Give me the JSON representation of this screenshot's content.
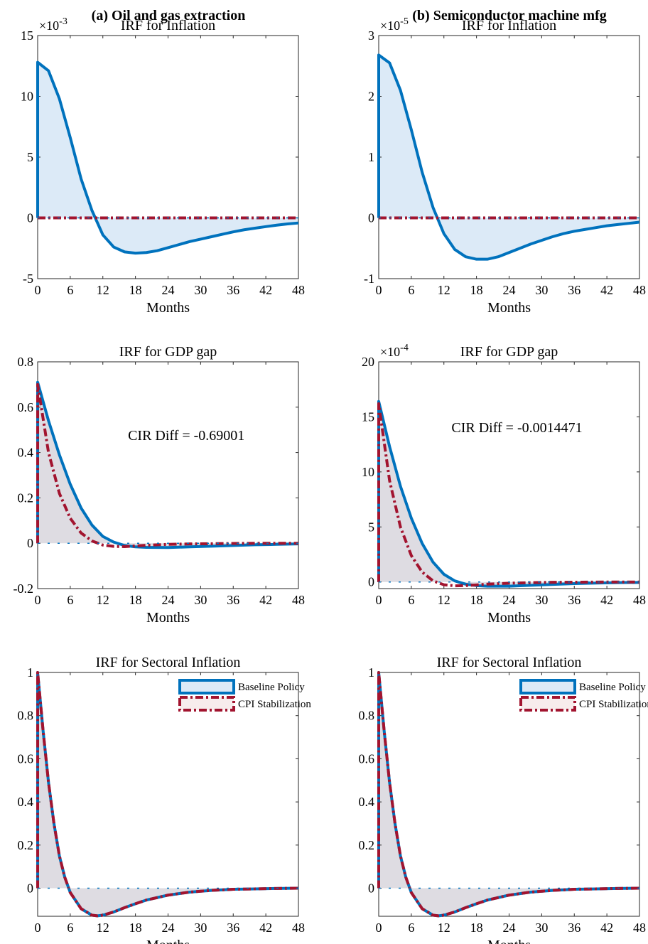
{
  "column_titles": [
    "(a) Oil and gas extraction",
    "(b) Semiconductor machine mfg"
  ],
  "colors": {
    "baseline": "#0072BD",
    "baseline_fill": "#DCEAF7",
    "cpi": "#A2142F",
    "gray_fill": "#DEDCE2"
  },
  "legend": {
    "baseline": "Baseline Policy",
    "cpi": "CPI Stabilization"
  },
  "chart_data": [
    {
      "type": "line",
      "title": "IRF for Inflation",
      "xlabel": "Months",
      "ylabel": "",
      "exponent_label": "×10",
      "exponent": "-3",
      "xlim": [
        0,
        48
      ],
      "ylim": [
        -5,
        15
      ],
      "xticks": [
        0,
        6,
        12,
        18,
        24,
        30,
        36,
        42,
        48
      ],
      "yticks": [
        -5,
        0,
        5,
        10,
        15
      ],
      "ytick_labels": [
        "-5",
        "0",
        "5",
        "10",
        "15"
      ],
      "area_fill": "baseline",
      "legend": false,
      "annotation": "",
      "series": [
        {
          "name": "Baseline Policy",
          "style": "solid",
          "x": [
            0,
            0,
            2,
            4,
            6,
            8,
            10,
            12,
            14,
            16,
            18,
            20,
            22,
            24,
            26,
            28,
            30,
            32,
            34,
            36,
            38,
            40,
            42,
            44,
            46,
            48
          ],
          "y": [
            0,
            12.8,
            12.1,
            9.8,
            6.6,
            3.2,
            0.6,
            -1.4,
            -2.4,
            -2.8,
            -2.9,
            -2.85,
            -2.7,
            -2.45,
            -2.2,
            -1.95,
            -1.75,
            -1.55,
            -1.35,
            -1.15,
            -0.98,
            -0.85,
            -0.72,
            -0.6,
            -0.5,
            -0.42
          ]
        },
        {
          "name": "CPI Stabilization",
          "style": "dashdot",
          "x": [
            0,
            48
          ],
          "y": [
            0,
            0
          ]
        }
      ]
    },
    {
      "type": "line",
      "title": "IRF for Inflation",
      "xlabel": "Months",
      "ylabel": "",
      "exponent_label": "×10",
      "exponent": "-5",
      "xlim": [
        0,
        48
      ],
      "ylim": [
        -1,
        3
      ],
      "xticks": [
        0,
        6,
        12,
        18,
        24,
        30,
        36,
        42,
        48
      ],
      "yticks": [
        -1,
        0,
        1,
        2,
        3
      ],
      "ytick_labels": [
        "-1",
        "0",
        "1",
        "2",
        "3"
      ],
      "area_fill": "baseline",
      "legend": false,
      "annotation": "",
      "series": [
        {
          "name": "Baseline Policy",
          "style": "solid",
          "x": [
            0,
            0,
            2,
            4,
            6,
            8,
            10,
            12,
            14,
            16,
            18,
            20,
            22,
            24,
            26,
            28,
            30,
            32,
            34,
            36,
            38,
            40,
            42,
            44,
            46,
            48
          ],
          "y": [
            0,
            2.68,
            2.55,
            2.1,
            1.45,
            0.75,
            0.17,
            -0.26,
            -0.52,
            -0.64,
            -0.68,
            -0.68,
            -0.64,
            -0.57,
            -0.5,
            -0.43,
            -0.37,
            -0.31,
            -0.26,
            -0.22,
            -0.19,
            -0.16,
            -0.13,
            -0.11,
            -0.09,
            -0.07
          ]
        },
        {
          "name": "CPI Stabilization",
          "style": "dashdot",
          "x": [
            0,
            48
          ],
          "y": [
            0,
            0
          ]
        }
      ]
    },
    {
      "type": "line",
      "title": "IRF for GDP gap",
      "xlabel": "Months",
      "ylabel": "",
      "exponent_label": "",
      "exponent": "",
      "xlim": [
        0,
        48
      ],
      "ylim": [
        -0.2,
        0.8
      ],
      "xticks": [
        0,
        6,
        12,
        18,
        24,
        30,
        36,
        42,
        48
      ],
      "yticks": [
        -0.2,
        0,
        0.2,
        0.4,
        0.6,
        0.8
      ],
      "ytick_labels": [
        "-0.2",
        "0",
        "0.2",
        "0.4",
        "0.6",
        "0.8"
      ],
      "area_fill": "gray",
      "legend": false,
      "annotation": "CIR Diff = -0.69001",
      "series": [
        {
          "name": "Baseline Policy",
          "style": "solid",
          "x": [
            0,
            0,
            2,
            4,
            6,
            8,
            10,
            12,
            14,
            16,
            18,
            20,
            24,
            28,
            32,
            36,
            40,
            44,
            48
          ],
          "y": [
            0,
            0.71,
            0.54,
            0.39,
            0.26,
            0.155,
            0.08,
            0.03,
            0.005,
            -0.01,
            -0.016,
            -0.018,
            -0.019,
            -0.016,
            -0.013,
            -0.01,
            -0.007,
            -0.005,
            -0.003
          ]
        },
        {
          "name": "CPI Stabilization",
          "style": "dashdot",
          "x": [
            0,
            0,
            2,
            4,
            6,
            8,
            10,
            12,
            14,
            16,
            18,
            20,
            24,
            28,
            32,
            36,
            40,
            44,
            48
          ],
          "y": [
            0,
            0.7,
            0.4,
            0.22,
            0.11,
            0.045,
            0.01,
            -0.008,
            -0.014,
            -0.015,
            -0.012,
            -0.009,
            -0.005,
            -0.003,
            -0.002,
            -0.001,
            0,
            0,
            0
          ]
        }
      ]
    },
    {
      "type": "line",
      "title": "IRF for GDP gap",
      "xlabel": "Months",
      "ylabel": "",
      "exponent_label": "×10",
      "exponent": "-4",
      "xlim": [
        0,
        48
      ],
      "ylim": [
        -0.6,
        20
      ],
      "xticks": [
        0,
        6,
        12,
        18,
        24,
        30,
        36,
        42,
        48
      ],
      "yticks": [
        0,
        5,
        10,
        15,
        20
      ],
      "ytick_labels": [
        "0",
        "5",
        "10",
        "15",
        "20"
      ],
      "area_fill": "gray",
      "legend": false,
      "annotation": "CIR Diff = -0.0014471",
      "series": [
        {
          "name": "Baseline Policy",
          "style": "solid",
          "x": [
            0,
            0,
            2,
            4,
            6,
            8,
            10,
            12,
            14,
            16,
            18,
            20,
            24,
            28,
            32,
            36,
            40,
            44,
            48
          ],
          "y": [
            0,
            16.4,
            12.3,
            8.7,
            5.8,
            3.5,
            1.8,
            0.7,
            0.1,
            -0.2,
            -0.33,
            -0.38,
            -0.38,
            -0.3,
            -0.22,
            -0.15,
            -0.1,
            -0.06,
            -0.04
          ]
        },
        {
          "name": "CPI Stabilization",
          "style": "dashdot",
          "x": [
            0,
            0,
            2,
            4,
            6,
            8,
            10,
            12,
            14,
            16,
            18,
            20,
            24,
            28,
            32,
            36,
            40,
            44,
            48
          ],
          "y": [
            0,
            16.2,
            9.2,
            5.0,
            2.4,
            0.9,
            0.1,
            -0.25,
            -0.35,
            -0.33,
            -0.27,
            -0.2,
            -0.11,
            -0.06,
            -0.03,
            -0.02,
            -0.01,
            0,
            0
          ]
        }
      ]
    },
    {
      "type": "line",
      "title": "IRF for Sectoral Inflation",
      "xlabel": "Months",
      "ylabel": "",
      "exponent_label": "",
      "exponent": "",
      "xlim": [
        0,
        48
      ],
      "ylim": [
        -0.13,
        1
      ],
      "xticks": [
        0,
        6,
        12,
        18,
        24,
        30,
        36,
        42,
        48
      ],
      "yticks": [
        0,
        0.2,
        0.4,
        0.6,
        0.8,
        1
      ],
      "ytick_labels": [
        "0",
        "0.2",
        "0.4",
        "0.6",
        "0.8",
        "1"
      ],
      "area_fill": "gray",
      "legend": true,
      "annotation": "",
      "series": [
        {
          "name": "Baseline Policy",
          "style": "solid",
          "x": [
            0,
            0,
            1,
            2,
            3,
            4,
            5,
            6,
            8,
            10,
            11,
            12,
            14,
            16,
            18,
            20,
            24,
            28,
            32,
            36,
            40,
            44,
            48
          ],
          "y": [
            0,
            1.0,
            0.73,
            0.49,
            0.3,
            0.15,
            0.05,
            -0.02,
            -0.095,
            -0.125,
            -0.128,
            -0.125,
            -0.11,
            -0.09,
            -0.072,
            -0.055,
            -0.032,
            -0.018,
            -0.01,
            -0.005,
            -0.003,
            -0.001,
            0
          ]
        },
        {
          "name": "CPI Stabilization",
          "style": "dashdot",
          "x": [
            0,
            0,
            1,
            2,
            3,
            4,
            5,
            6,
            8,
            10,
            11,
            12,
            14,
            16,
            18,
            20,
            24,
            28,
            32,
            36,
            40,
            44,
            48
          ],
          "y": [
            0,
            1.0,
            0.73,
            0.49,
            0.3,
            0.15,
            0.05,
            -0.02,
            -0.095,
            -0.125,
            -0.128,
            -0.125,
            -0.11,
            -0.09,
            -0.072,
            -0.055,
            -0.032,
            -0.018,
            -0.01,
            -0.005,
            -0.003,
            -0.001,
            0
          ]
        }
      ]
    },
    {
      "type": "line",
      "title": "IRF for Sectoral Inflation",
      "xlabel": "Months",
      "ylabel": "",
      "exponent_label": "",
      "exponent": "",
      "xlim": [
        0,
        48
      ],
      "ylim": [
        -0.13,
        1
      ],
      "xticks": [
        0,
        6,
        12,
        18,
        24,
        30,
        36,
        42,
        48
      ],
      "yticks": [
        0,
        0.2,
        0.4,
        0.6,
        0.8,
        1
      ],
      "ytick_labels": [
        "0",
        "0.2",
        "0.4",
        "0.6",
        "0.8",
        "1"
      ],
      "area_fill": "gray",
      "legend": true,
      "annotation": "",
      "series": [
        {
          "name": "Baseline Policy",
          "style": "solid",
          "x": [
            0,
            0,
            1,
            2,
            3,
            4,
            5,
            6,
            8,
            10,
            11,
            12,
            14,
            16,
            18,
            20,
            24,
            28,
            32,
            36,
            40,
            44,
            48
          ],
          "y": [
            0,
            1.0,
            0.73,
            0.49,
            0.3,
            0.15,
            0.05,
            -0.02,
            -0.095,
            -0.125,
            -0.128,
            -0.125,
            -0.11,
            -0.09,
            -0.072,
            -0.055,
            -0.032,
            -0.018,
            -0.01,
            -0.005,
            -0.003,
            -0.001,
            0
          ]
        },
        {
          "name": "CPI Stabilization",
          "style": "dashdot",
          "x": [
            0,
            0,
            1,
            2,
            3,
            4,
            5,
            6,
            8,
            10,
            11,
            12,
            14,
            16,
            18,
            20,
            24,
            28,
            32,
            36,
            40,
            44,
            48
          ],
          "y": [
            0,
            1.0,
            0.73,
            0.49,
            0.3,
            0.15,
            0.05,
            -0.02,
            -0.095,
            -0.125,
            -0.128,
            -0.125,
            -0.11,
            -0.09,
            -0.072,
            -0.055,
            -0.032,
            -0.018,
            -0.01,
            -0.005,
            -0.003,
            -0.001,
            0
          ]
        }
      ]
    }
  ]
}
